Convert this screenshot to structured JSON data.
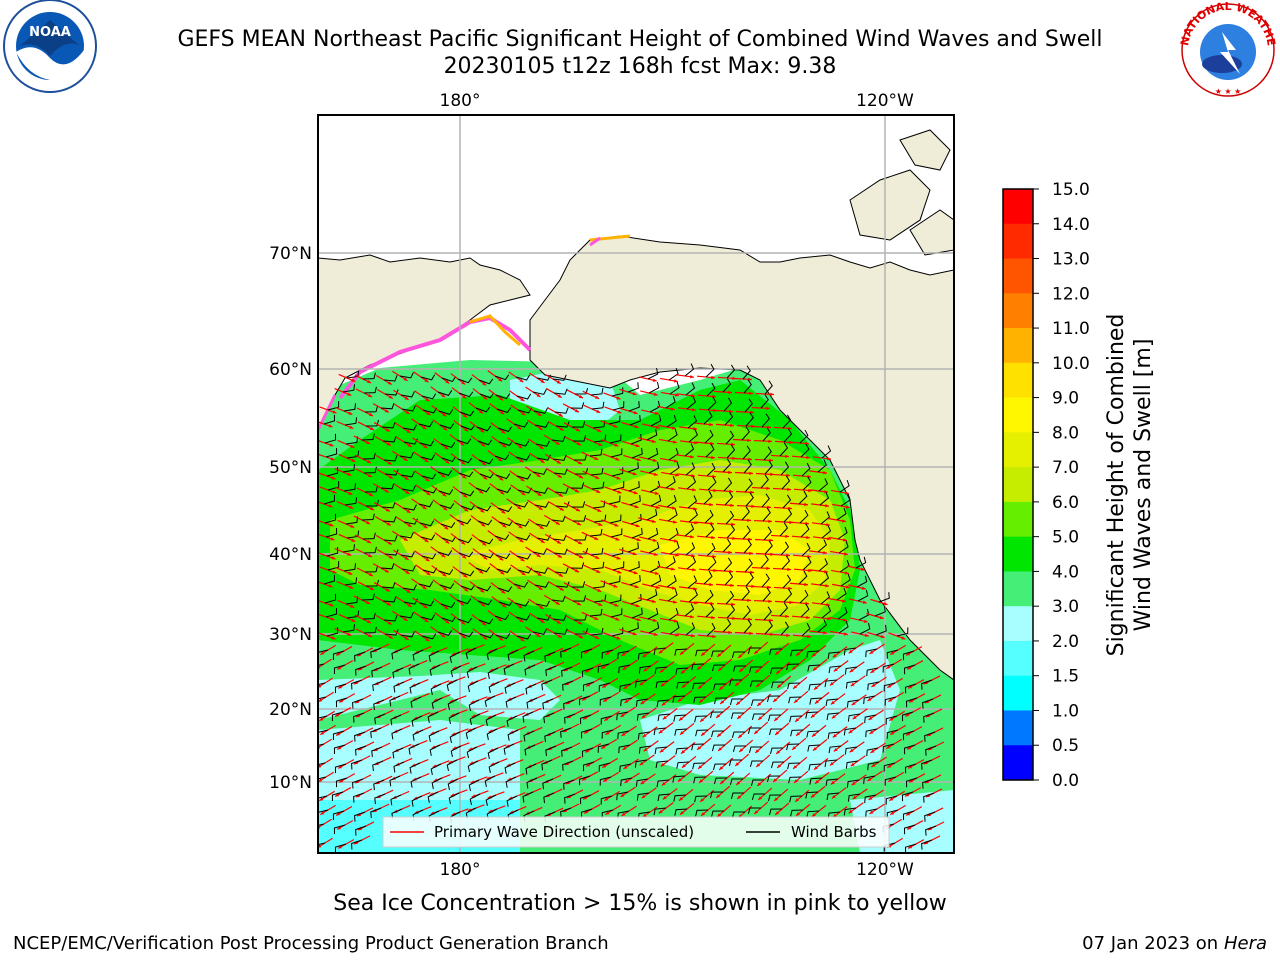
{
  "header": {
    "title_line1": "GEFS MEAN Northeast Pacific Significant Height of Combined Wind Waves and Swell",
    "title_line2": "20230105 t12z 168h fcst   Max: 9.38"
  },
  "logos": {
    "left": {
      "name": "NOAA",
      "ring_text": "NATIONAL OCEANIC AND ATMOSPHERIC ADMINISTRATION · U.S. DEPARTMENT OF COMMERCE"
    },
    "right": {
      "ring_text": "NATIONAL WEATHER SERVICE"
    }
  },
  "map": {
    "top_lon_labels": [
      "180°",
      "120°W"
    ],
    "bottom_lon_labels": [
      "180°",
      "120°W"
    ],
    "lat_labels": [
      "70°N",
      "60°N",
      "50°N",
      "40°N",
      "30°N",
      "20°N",
      "10°N"
    ],
    "legend": {
      "wave_label": "Primary Wave Direction (unscaled)",
      "wind_label": "Wind Barbs"
    }
  },
  "colorbar": {
    "label_line1": "Significant Height of Combined",
    "label_line2": "Wind Waves and Swell [m]",
    "ticks": [
      "15.0",
      "14.0",
      "13.0",
      "12.0",
      "11.0",
      "10.0",
      "9.0",
      "8.0",
      "7.0",
      "6.0",
      "5.0",
      "4.0",
      "3.0",
      "2.0",
      "1.5",
      "1.0",
      "0.5",
      "0.0"
    ],
    "colors": [
      "#ff0000",
      "#ff2a00",
      "#ff5500",
      "#ff8000",
      "#ffb300",
      "#ffe100",
      "#fff700",
      "#e4f000",
      "#c6ec00",
      "#66ee00",
      "#00e600",
      "#44ee77",
      "#a8fefe",
      "#55ffff",
      "#00ffff",
      "#0078ff",
      "#0000ff"
    ]
  },
  "footer": {
    "ice_note": "Sea Ice Concentration > 15% is shown in pink to yellow",
    "credit": "NCEP/EMC/Verification Post Processing Product Generation Branch",
    "date": "07 Jan 2023 on ",
    "host": "Hera"
  },
  "colors": {
    "land": "#efedd8",
    "grid": "#b3b3b3",
    "wave_arrow": "#ff0000",
    "wind_barb": "#000000"
  }
}
